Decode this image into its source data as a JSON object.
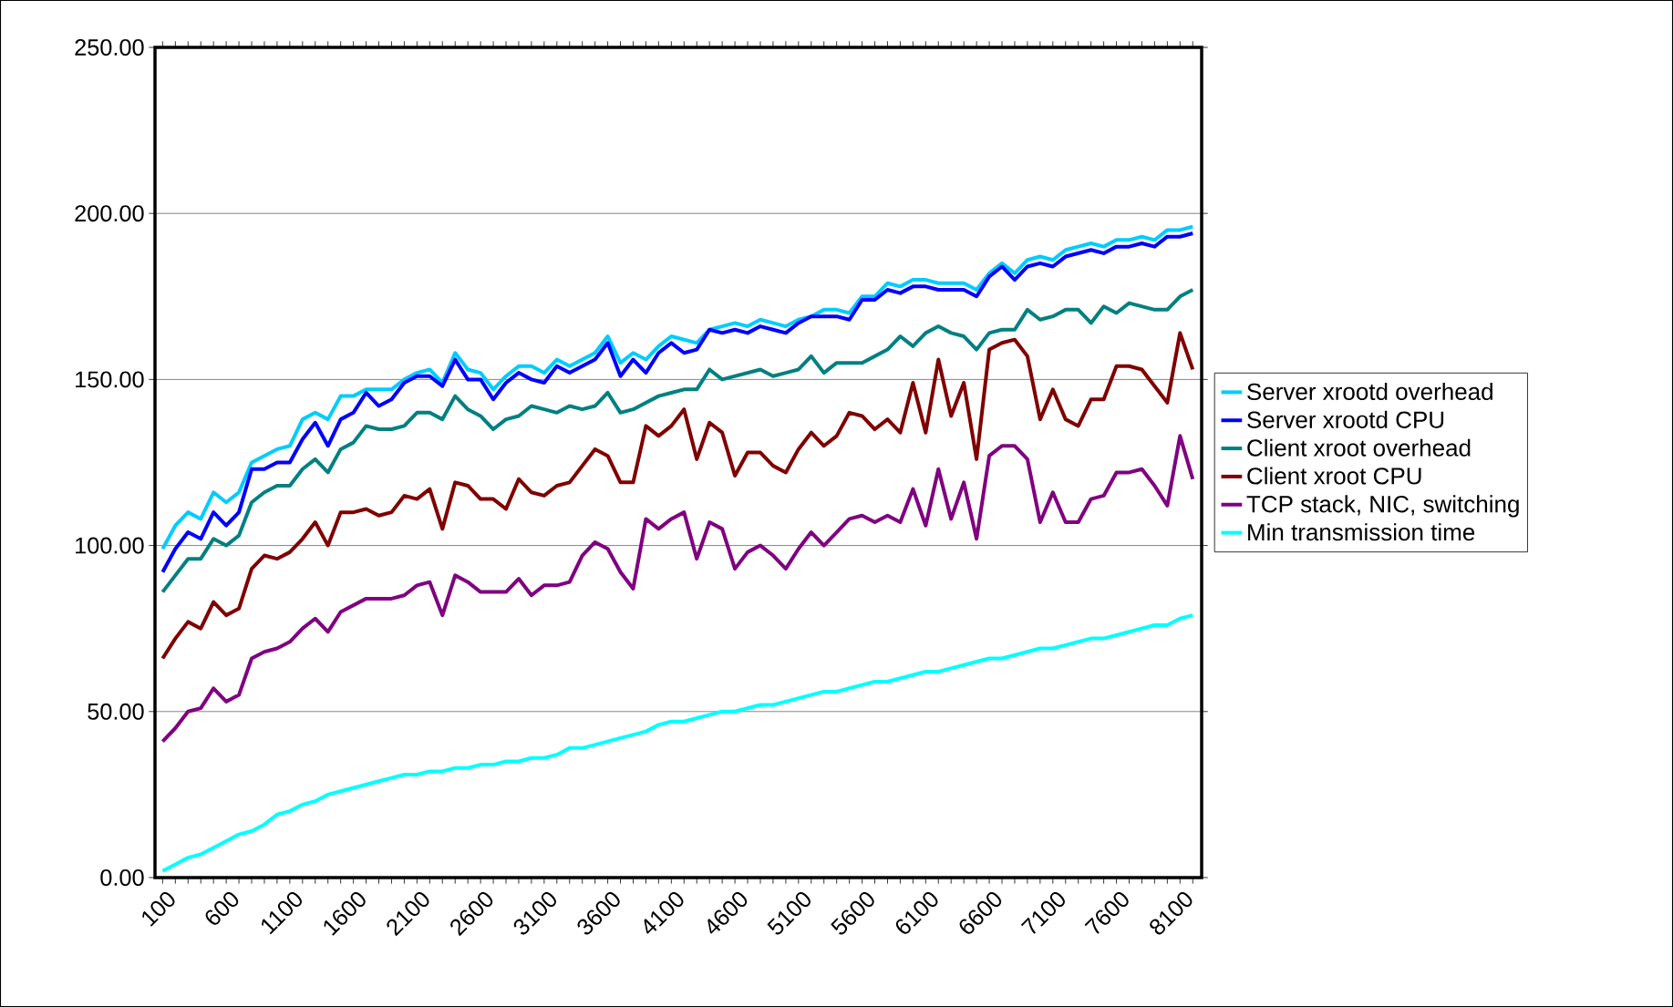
{
  "chart_data": {
    "type": "line",
    "categories": [
      "100",
      null,
      null,
      null,
      null,
      "600",
      null,
      null,
      null,
      null,
      "1100",
      null,
      null,
      null,
      null,
      "1600",
      null,
      null,
      null,
      null,
      "2100",
      null,
      null,
      null,
      null,
      "2600",
      null,
      null,
      null,
      null,
      "3100",
      null,
      null,
      null,
      null,
      "3600",
      null,
      null,
      null,
      null,
      "4100",
      null,
      null,
      null,
      null,
      "4600",
      null,
      null,
      null,
      null,
      "5100",
      null,
      null,
      null,
      null,
      "5600",
      null,
      null,
      null,
      null,
      "6100",
      null,
      null,
      null,
      null,
      "6600",
      null,
      null,
      null,
      null,
      "7100",
      null,
      null,
      null,
      null,
      "7600",
      null,
      null,
      null,
      null,
      "8100",
      null
    ],
    "ylim": [
      0,
      250
    ],
    "yticks": [
      {
        "value": 0,
        "label": "0.00"
      },
      {
        "value": 50,
        "label": "50.00"
      },
      {
        "value": 100,
        "label": "100.00"
      },
      {
        "value": 150,
        "label": "150.00"
      },
      {
        "value": 200,
        "label": "200.00"
      },
      {
        "value": 250,
        "label": "250.00"
      }
    ],
    "grid": "y",
    "legend": "right",
    "line_style": "solid",
    "series": [
      {
        "name": "Server xrootd overhead",
        "color": "#00ccff",
        "values": [
          99,
          106,
          110,
          108,
          116,
          113,
          116,
          125,
          127,
          129,
          130,
          138,
          140,
          138,
          145,
          145,
          147,
          147,
          147,
          150,
          152,
          153,
          149,
          158,
          153,
          152,
          147,
          151,
          154,
          154,
          152,
          156,
          154,
          156,
          158,
          163,
          155,
          158,
          156,
          160,
          163,
          162,
          161,
          165,
          166,
          167,
          166,
          168,
          167,
          166,
          168,
          169,
          171,
          171,
          170,
          175,
          175,
          179,
          178,
          180,
          180,
          179,
          179,
          179,
          177,
          182,
          185,
          182,
          186,
          187,
          186,
          189,
          190,
          191,
          190,
          192,
          192,
          193,
          192,
          195,
          195,
          196
        ]
      },
      {
        "name": "Server xrootd CPU",
        "color": "#0000ff",
        "values": [
          92,
          99,
          104,
          102,
          110,
          106,
          110,
          123,
          123,
          125,
          125,
          132,
          137,
          130,
          138,
          140,
          146,
          142,
          144,
          149,
          151,
          151,
          148,
          156,
          150,
          150,
          144,
          149,
          152,
          150,
          149,
          154,
          152,
          154,
          156,
          161,
          151,
          156,
          152,
          158,
          161,
          158,
          159,
          165,
          164,
          165,
          164,
          166,
          165,
          164,
          167,
          169,
          169,
          169,
          168,
          174,
          174,
          177,
          176,
          178,
          178,
          177,
          177,
          177,
          175,
          181,
          184,
          180,
          184,
          185,
          184,
          187,
          188,
          189,
          188,
          190,
          190,
          191,
          190,
          193,
          193,
          194
        ]
      },
      {
        "name": "Client xroot overhead",
        "color": "#008080",
        "values": [
          86,
          91,
          96,
          96,
          102,
          100,
          103,
          113,
          116,
          118,
          118,
          123,
          126,
          122,
          129,
          131,
          136,
          135,
          135,
          136,
          140,
          140,
          138,
          145,
          141,
          139,
          135,
          138,
          139,
          142,
          141,
          140,
          142,
          141,
          142,
          146,
          140,
          141,
          143,
          145,
          146,
          147,
          147,
          153,
          150,
          151,
          152,
          153,
          151,
          152,
          153,
          157,
          152,
          155,
          155,
          155,
          157,
          159,
          163,
          160,
          164,
          166,
          164,
          163,
          159,
          164,
          165,
          165,
          171,
          168,
          169,
          171,
          171,
          167,
          172,
          170,
          173,
          172,
          171,
          171,
          175,
          177
        ]
      },
      {
        "name": "Client xroot CPU",
        "color": "#800000",
        "values": [
          66,
          72,
          77,
          75,
          83,
          79,
          81,
          93,
          97,
          96,
          98,
          102,
          107,
          100,
          110,
          110,
          111,
          109,
          110,
          115,
          114,
          117,
          105,
          119,
          118,
          114,
          114,
          111,
          120,
          116,
          115,
          118,
          119,
          124,
          129,
          127,
          119,
          119,
          136,
          133,
          136,
          141,
          126,
          137,
          134,
          121,
          128,
          128,
          124,
          122,
          129,
          134,
          130,
          133,
          140,
          139,
          135,
          138,
          134,
          149,
          134,
          156,
          139,
          149,
          126,
          159,
          161,
          162,
          157,
          138,
          147,
          138,
          136,
          144,
          144,
          154,
          154,
          153,
          148,
          143,
          164,
          153
        ]
      },
      {
        "name": "TCP stack, NIC, switching",
        "color": "#800080",
        "values": [
          41,
          45,
          50,
          51,
          57,
          53,
          55,
          66,
          68,
          69,
          71,
          75,
          78,
          74,
          80,
          82,
          84,
          84,
          84,
          85,
          88,
          89,
          79,
          91,
          89,
          86,
          86,
          86,
          90,
          85,
          88,
          88,
          89,
          97,
          101,
          99,
          92,
          87,
          108,
          105,
          108,
          110,
          96,
          107,
          105,
          93,
          98,
          100,
          97,
          93,
          99,
          104,
          100,
          104,
          108,
          109,
          107,
          109,
          107,
          117,
          106,
          123,
          108,
          119,
          102,
          127,
          130,
          130,
          126,
          107,
          116,
          107,
          107,
          114,
          115,
          122,
          122,
          123,
          118,
          112,
          133,
          120
        ]
      },
      {
        "name": "Min transmission time",
        "color": "#00ffff",
        "values": [
          2,
          4,
          6,
          7,
          9,
          11,
          13,
          14,
          16,
          19,
          20,
          22,
          23,
          25,
          26,
          27,
          28,
          29,
          30,
          31,
          31,
          32,
          32,
          33,
          33,
          34,
          34,
          35,
          35,
          36,
          36,
          37,
          39,
          39,
          40,
          41,
          42,
          43,
          44,
          46,
          47,
          47,
          48,
          49,
          50,
          50,
          51,
          52,
          52,
          53,
          54,
          55,
          56,
          56,
          57,
          58,
          59,
          59,
          60,
          61,
          62,
          62,
          63,
          64,
          65,
          66,
          66,
          67,
          68,
          69,
          69,
          70,
          71,
          72,
          72,
          73,
          74,
          75,
          76,
          76,
          78,
          79
        ]
      }
    ]
  }
}
